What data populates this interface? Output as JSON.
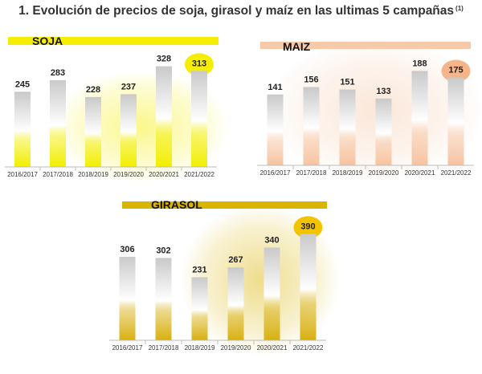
{
  "title": "1. Evolución de precios de soja, girasol y maíz en las ultimas 5 campañas",
  "title_note": "(1)",
  "chart_data": [
    {
      "type": "bar",
      "title": "SOJA",
      "categories": [
        "2016/2017",
        "2017/2018",
        "2018/2019",
        "2019/2020",
        "2020/2021",
        "2021/2022"
      ],
      "values": [
        245,
        283,
        228,
        237,
        328,
        313
      ],
      "highlight_index": 5,
      "ylim": [
        0,
        340
      ],
      "colors": {
        "band": "#f5ee00",
        "bar_bottom": "#f2ee00",
        "bar_top": "#c9c9c9",
        "badge": "#f5ee00"
      },
      "grid": false,
      "legend": "none"
    },
    {
      "type": "bar",
      "title": "MAIZ",
      "categories": [
        "2016/2017",
        "2017/2018",
        "2018/2019",
        "2019/2020",
        "2020/2021",
        "2021/2022"
      ],
      "values": [
        141,
        156,
        151,
        133,
        188,
        175
      ],
      "highlight_index": 5,
      "ylim": [
        0,
        195
      ],
      "colors": {
        "band": "#f6c9a8",
        "bar_bottom": "#f6c3a0",
        "bar_top": "#c9c9c9",
        "badge": "#f5b48a"
      },
      "grid": false,
      "legend": "none"
    },
    {
      "type": "bar",
      "title": "GIRASOL",
      "categories": [
        "2016/2017",
        "2017/2018",
        "2018/2019",
        "2019/2020",
        "2020/2021",
        "2021/2022"
      ],
      "values": [
        306,
        302,
        231,
        267,
        340,
        390
      ],
      "highlight_index": 5,
      "ylim": [
        0,
        400
      ],
      "colors": {
        "band": "#d9b400",
        "bar_bottom": "#d8b010",
        "bar_top": "#c9c9c9",
        "badge": "#f2c400"
      },
      "grid": false,
      "legend": "none"
    }
  ]
}
